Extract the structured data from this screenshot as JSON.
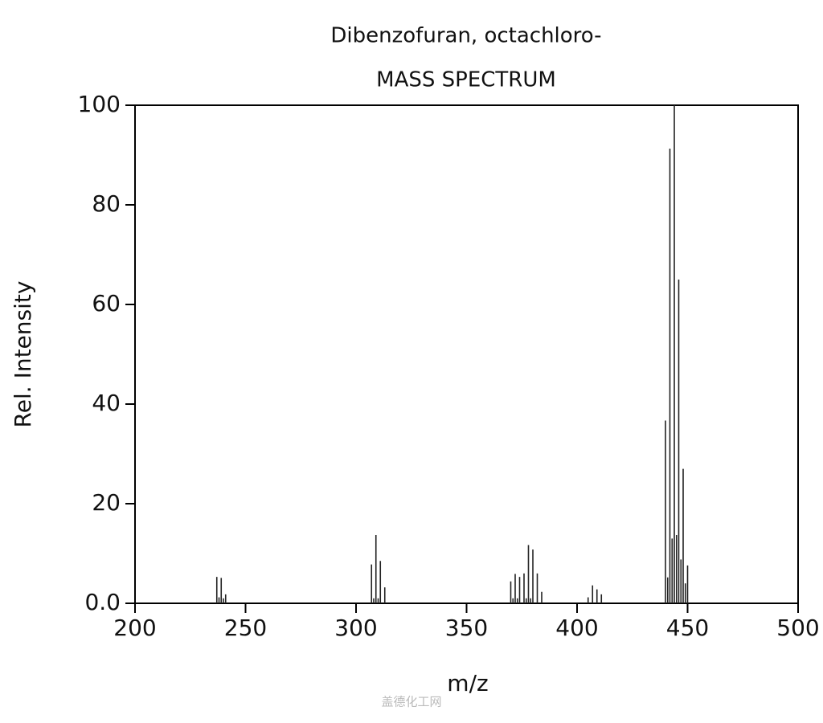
{
  "chart_data": {
    "type": "stem",
    "title": "Dibenzofuran, octachloro-",
    "subtitle": "MASS SPECTRUM",
    "x_label": "m/z",
    "y_label": "Rel. Intensity",
    "watermark": "盖德化工网",
    "x": [
      237,
      238,
      239,
      240,
      241,
      307,
      308,
      309,
      310,
      311,
      313,
      370,
      371,
      372,
      373,
      374,
      376,
      377,
      378,
      379,
      380,
      382,
      384,
      405,
      407,
      409,
      411,
      440,
      441,
      442,
      443,
      444,
      445,
      446,
      447,
      448,
      449,
      450
    ],
    "values": [
      5.3,
      1.2,
      5.1,
      1.0,
      1.8,
      7.8,
      1.0,
      13.7,
      1.0,
      8.5,
      3.2,
      4.4,
      1.0,
      5.9,
      1.0,
      5.3,
      6.0,
      1.0,
      11.7,
      1.0,
      10.8,
      6.0,
      2.3,
      1.2,
      3.6,
      2.8,
      1.8,
      36.7,
      5.2,
      91.3,
      13.0,
      100,
      13.7,
      65.0,
      8.8,
      27.0,
      4.0,
      7.6
    ],
    "color": "#222222",
    "xlim": [
      200,
      500
    ],
    "xticks": [
      200,
      250,
      300,
      350,
      400,
      450,
      500
    ],
    "ylim": [
      0,
      100
    ],
    "yticks": [
      {
        "value": 0,
        "label": "0.0"
      },
      20,
      40,
      60,
      80,
      100
    ]
  }
}
